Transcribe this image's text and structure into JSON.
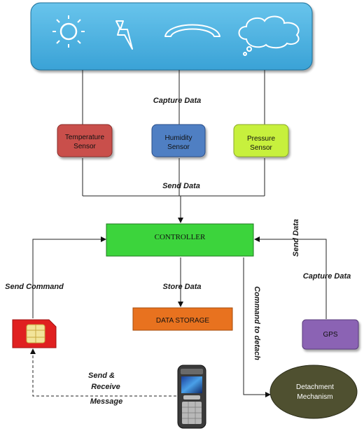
{
  "labels": {
    "capture_data_top": "Capture Data",
    "send_data_mid": "Send Data",
    "store_data": "Store Data",
    "send_command": "Send Command",
    "send_receive_1": "Send &",
    "send_receive_2": "Receive",
    "message": "Message",
    "command_to_detach": "Command to detach",
    "send_data_right": "Send Data",
    "capture_data_right": "Capture Data"
  },
  "boxes": {
    "temperature_1": "Temperature",
    "temperature_2": "Sensor",
    "humidity_1": "Humidity",
    "humidity_2": "Sensor",
    "pressure_1": "Pressure",
    "pressure_2": "Sensor",
    "controller": "CONTROLLER",
    "data_storage": "DATA STORAGE",
    "gps": "GPS",
    "detach_1": "Detachment",
    "detach_2": "Mechanism"
  },
  "colors": {
    "sky_panel": "#4fb6e4",
    "temperature": "#c9504c",
    "humidity": "#4f7fc3",
    "pressure": "#c7f03c",
    "controller": "#3cd43c",
    "data_storage": "#e8721f",
    "gps": "#8b63b4",
    "detachment": "#4f5030",
    "sim_card": "#e02020"
  },
  "icons": [
    "sun-icon",
    "lightning-icon",
    "rainbow-icon",
    "cloud-icon",
    "sim-card-icon",
    "mobile-phone-icon"
  ]
}
